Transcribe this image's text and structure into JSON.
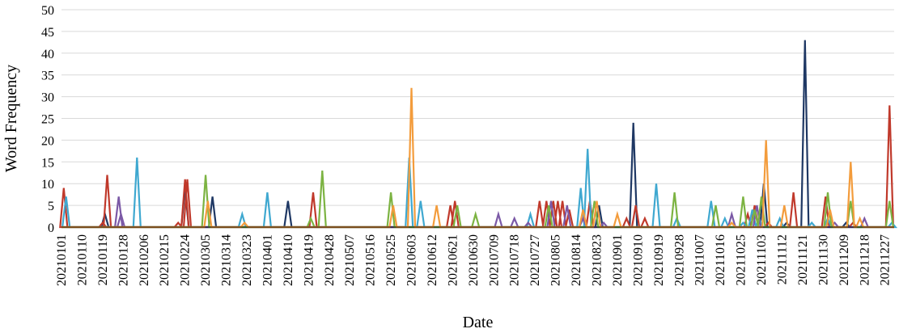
{
  "chart_data": {
    "type": "line",
    "title": "",
    "xlabel": "Date",
    "ylabel": "Word Frequency",
    "ylim": [
      0,
      50
    ],
    "yticks": [
      "0",
      "5",
      "10",
      "15",
      "20",
      "25",
      "30",
      "35",
      "40",
      "45",
      "50"
    ],
    "x_start": "20210101",
    "x_end": "20211231",
    "grid": "horizontal",
    "legend": "none",
    "xticks": [
      "20210101",
      "20210110",
      "20210119",
      "20210128",
      "20210206",
      "20210215",
      "20210224",
      "20210305",
      "20210314",
      "20210323",
      "20210401",
      "20210410",
      "20210419",
      "20210428",
      "20210507",
      "20210516",
      "20210525",
      "20210603",
      "20210612",
      "20210621",
      "20210630",
      "20210709",
      "20210718",
      "20210727",
      "20210805",
      "20210814",
      "20210823",
      "20210901",
      "20210910",
      "20210919",
      "20210928",
      "20211007",
      "20211016",
      "20211025",
      "20211103",
      "20211112",
      "20211121",
      "20211130",
      "20211209",
      "20211218",
      "20211227"
    ],
    "series": [
      {
        "color": "#1f3864",
        "points": [
          [
            "20210120",
            3
          ],
          [
            "20210224",
            9
          ],
          [
            "20210308",
            7
          ],
          [
            "20210410",
            6
          ],
          [
            "20210824",
            5
          ],
          [
            "20210908",
            24
          ],
          [
            "20211104",
            10
          ],
          [
            "20211114",
            1
          ],
          [
            "20211122",
            43
          ],
          [
            "20211210",
            1
          ]
        ]
      },
      {
        "color": "#c0392b",
        "points": [
          [
            "20210102",
            9
          ],
          [
            "20210119",
            1
          ],
          [
            "20210121",
            12
          ],
          [
            "20210221",
            1
          ],
          [
            "20210224",
            11
          ],
          [
            "20210225",
            11
          ],
          [
            "20210421",
            8
          ],
          [
            "20210620",
            5
          ],
          [
            "20210622",
            6
          ],
          [
            "20210729",
            6
          ],
          [
            "20210801",
            6
          ],
          [
            "20210804",
            6
          ],
          [
            "20210806",
            6
          ],
          [
            "20210808",
            6
          ],
          [
            "20210811",
            4
          ],
          [
            "20210820",
            6
          ],
          [
            "20210905",
            2
          ],
          [
            "20210909",
            5
          ],
          [
            "20210913",
            2
          ],
          [
            "20211028",
            3
          ],
          [
            "20211031",
            5
          ],
          [
            "20211106",
            1
          ],
          [
            "20211117",
            8
          ],
          [
            "20211201",
            7
          ],
          [
            "20211213",
            1
          ],
          [
            "20211229",
            28
          ]
        ]
      },
      {
        "color": "#3fa8d0",
        "points": [
          [
            "20210103",
            7
          ],
          [
            "20210203",
            16
          ],
          [
            "20210321",
            3
          ],
          [
            "20210401",
            8
          ],
          [
            "20210602",
            16
          ],
          [
            "20210607",
            6
          ],
          [
            "20210725",
            3
          ],
          [
            "20210816",
            9
          ],
          [
            "20210819",
            18
          ],
          [
            "20210918",
            10
          ],
          [
            "20210927",
            2
          ],
          [
            "20211012",
            6
          ],
          [
            "20211018",
            2
          ],
          [
            "20211026",
            1
          ],
          [
            "20211030",
            4
          ],
          [
            "20211102",
            2
          ],
          [
            "20211111",
            2
          ],
          [
            "20211125",
            1
          ],
          [
            "20211202",
            2
          ],
          [
            "20211230",
            1
          ]
        ]
      },
      {
        "color": "#7b59a6",
        "points": [
          [
            "20210126",
            7
          ],
          [
            "20210127",
            3
          ],
          [
            "20210711",
            3
          ],
          [
            "20210718",
            2
          ],
          [
            "20210724",
            1
          ],
          [
            "20210803",
            6
          ],
          [
            "20210810",
            5
          ],
          [
            "20210817",
            2
          ],
          [
            "20210826",
            1
          ],
          [
            "20211021",
            3
          ],
          [
            "20211101",
            5
          ],
          [
            "20211205",
            1
          ],
          [
            "20211218",
            2
          ]
        ]
      },
      {
        "color": "#7cb342",
        "points": [
          [
            "20210305",
            12
          ],
          [
            "20210420",
            2
          ],
          [
            "20210425",
            13
          ],
          [
            "20210525",
            8
          ],
          [
            "20210623",
            5
          ],
          [
            "20210701",
            3
          ],
          [
            "20210802",
            5
          ],
          [
            "20210822",
            6
          ],
          [
            "20210926",
            8
          ],
          [
            "20211014",
            5
          ],
          [
            "20211026",
            7
          ],
          [
            "20211031",
            4
          ],
          [
            "20211103",
            7
          ],
          [
            "20211202",
            8
          ],
          [
            "20211212",
            6
          ],
          [
            "20211229",
            6
          ]
        ]
      },
      {
        "color": "#f39c3c",
        "points": [
          [
            "20210306",
            6
          ],
          [
            "20210322",
            1
          ],
          [
            "20210526",
            5
          ],
          [
            "20210603",
            32
          ],
          [
            "20210614",
            5
          ],
          [
            "20210817",
            4
          ],
          [
            "20210823",
            6
          ],
          [
            "20210901",
            3
          ],
          [
            "20211021",
            1
          ],
          [
            "20211105",
            20
          ],
          [
            "20211113",
            5
          ],
          [
            "20211203",
            4
          ],
          [
            "20211212",
            15
          ],
          [
            "20211216",
            2
          ]
        ]
      }
    ]
  }
}
